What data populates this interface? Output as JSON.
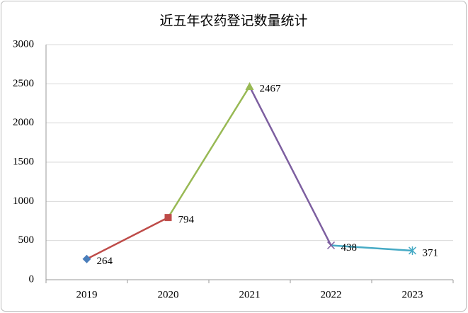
{
  "chart_data": {
    "type": "line",
    "title": "近五年农药登记数量统计",
    "categories": [
      "2019",
      "2020",
      "2021",
      "2022",
      "2023"
    ],
    "values": [
      264,
      794,
      2467,
      438,
      371
    ],
    "colors": [
      "#4a7ebb",
      "#be4b48",
      "#98b954",
      "#7d5fa0",
      "#46aac5"
    ],
    "markers": [
      "diamond",
      "square",
      "triangle",
      "x",
      "star"
    ],
    "ylim": [
      0,
      3000
    ],
    "yticks": [
      0,
      500,
      1000,
      1500,
      2000,
      2500,
      3000
    ],
    "grid": true
  }
}
